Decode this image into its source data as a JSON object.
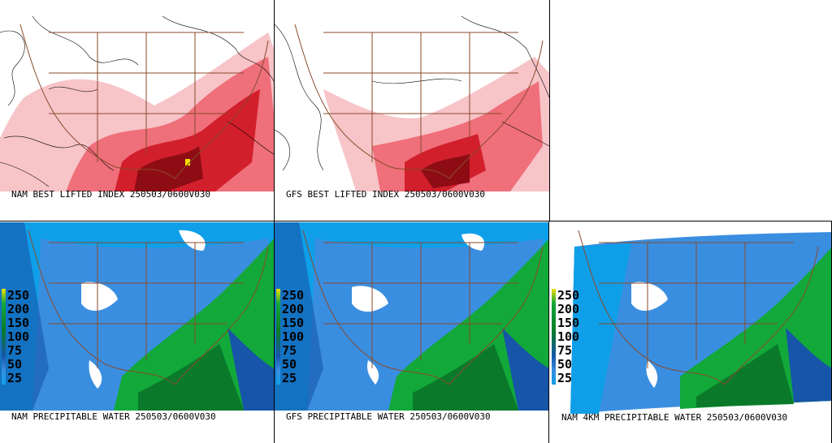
{
  "panels": [
    {
      "id": "nam-li",
      "caption": "NAM BEST LIFTED INDEX 250503/0600V030",
      "type": "li"
    },
    {
      "id": "gfs-li",
      "caption": "GFS BEST LIFTED INDEX 250503/0600V030",
      "type": "li"
    },
    {
      "id": "nam-pw",
      "caption": "NAM PRECIPITABLE WATER 250503/0600V030",
      "type": "pw"
    },
    {
      "id": "gfs-pw",
      "caption": "GFS PRECIPITABLE WATER 250503/0600V030",
      "type": "pw"
    },
    {
      "id": "nam4k-pw",
      "caption": "NAM 4KM PRECIPITABLE WATER 250503/0600V030",
      "type": "pw"
    }
  ],
  "pw_legend": [
    "250",
    "200",
    "150",
    "100",
    "75",
    "50",
    "25"
  ],
  "colors": {
    "pw_low": "#0f9fe8",
    "pw_mid": "#3a8ee0",
    "pw_deep": "#1655a8",
    "pw_green": "#12a83a",
    "pw_dkgreen": "#0a7a2a",
    "li_light": "#f7c4c8",
    "li_mid": "#ef6f7a",
    "li_dark": "#d21f2c",
    "li_darker": "#8e0c14",
    "border": "#8b4a2b"
  }
}
